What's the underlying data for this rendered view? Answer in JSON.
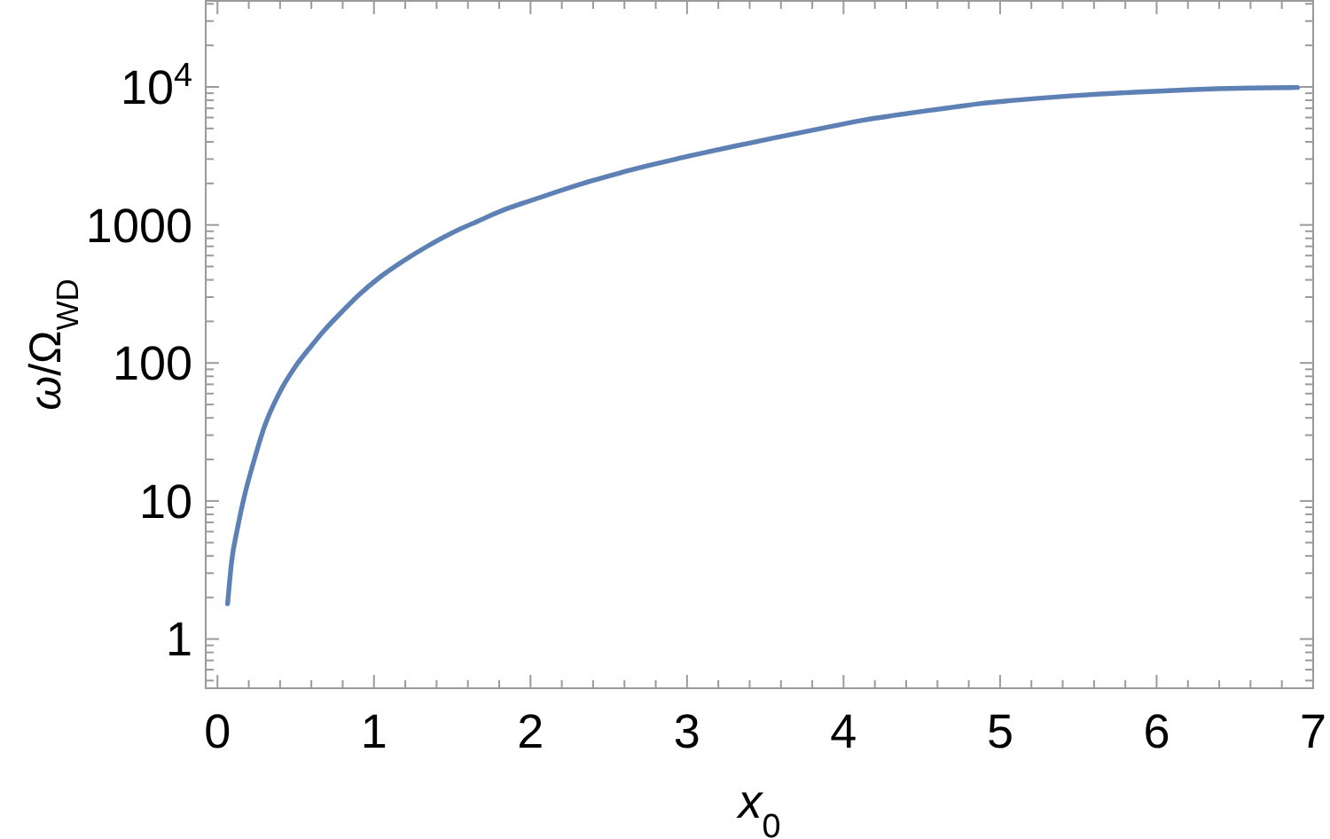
{
  "chart_data": {
    "type": "line",
    "xlabel": "x$_{0}$",
    "ylabel": "ω/Ω$_{WD}$",
    "log": "y",
    "x": [
      0.065,
      0.09,
      0.13,
      0.17,
      0.23,
      0.3,
      0.4,
      0.5,
      0.6,
      0.68,
      0.8,
      0.91,
      1.04,
      1.17,
      1.34,
      1.51,
      1.66,
      1.81,
      2.0,
      2.19,
      2.38,
      2.57,
      2.76,
      2.95,
      3.15,
      3.37,
      3.56,
      3.75,
      3.94,
      4.13,
      4.32,
      4.51,
      4.7,
      4.88,
      5.07,
      5.26,
      5.45,
      5.64,
      5.83,
      6.02,
      6.2,
      6.39,
      6.6,
      6.9
    ],
    "series": [
      {
        "color": "#5e81b5",
        "values": [
          1.8,
          3.6,
          6.5,
          10.6,
          19,
          34.5,
          62,
          95,
          133,
          171,
          238,
          316,
          420,
          532,
          700,
          889,
          1060,
          1260,
          1500,
          1770,
          2070,
          2380,
          2700,
          3040,
          3420,
          3860,
          4280,
          4730,
          5220,
          5750,
          6210,
          6670,
          7130,
          7590,
          7960,
          8300,
          8610,
          8890,
          9120,
          9330,
          9530,
          9700,
          9820,
          9900
        ]
      }
    ],
    "xlim": [
      -0.075,
      7.0
    ],
    "ylim": [
      0.44,
      42000
    ],
    "xticks": [
      0,
      {
        "value": 0.2,
        "label": null
      },
      {
        "value": 0.4,
        "label": null
      },
      {
        "value": 0.6,
        "label": null
      },
      {
        "value": 0.8,
        "label": null
      },
      1,
      {
        "value": 1.2,
        "label": null
      },
      {
        "value": 1.4,
        "label": null
      },
      {
        "value": 1.6,
        "label": null
      },
      {
        "value": 1.8,
        "label": null
      },
      2,
      {
        "value": 2.2,
        "label": null
      },
      {
        "value": 2.4,
        "label": null
      },
      {
        "value": 2.6,
        "label": null
      },
      {
        "value": 2.8,
        "label": null
      },
      3,
      {
        "value": 3.2,
        "label": null
      },
      {
        "value": 3.4,
        "label": null
      },
      {
        "value": 3.6,
        "label": null
      },
      {
        "value": 3.8,
        "label": null
      },
      4,
      {
        "value": 4.2,
        "label": null
      },
      {
        "value": 4.4,
        "label": null
      },
      {
        "value": 4.6,
        "label": null
      },
      {
        "value": 4.8,
        "label": null
      },
      5,
      {
        "value": 5.2,
        "label": null
      },
      {
        "value": 5.4,
        "label": null
      },
      {
        "value": 5.6,
        "label": null
      },
      {
        "value": 5.8,
        "label": null
      },
      6,
      {
        "value": 6.2,
        "label": null
      },
      {
        "value": 6.4,
        "label": null
      },
      {
        "value": 6.6,
        "label": null
      },
      {
        "value": 6.8,
        "label": null
      },
      7
    ],
    "yticks": [
      {
        "value": 0.5,
        "label": null
      },
      {
        "value": 0.6,
        "label": null
      },
      {
        "value": 0.7,
        "label": null
      },
      {
        "value": 0.8,
        "label": null
      },
      {
        "value": 0.9,
        "label": null
      },
      1,
      {
        "value": 2,
        "label": null
      },
      {
        "value": 3,
        "label": null
      },
      {
        "value": 4,
        "label": null
      },
      {
        "value": 5,
        "label": null
      },
      {
        "value": 6,
        "label": null
      },
      {
        "value": 7,
        "label": null
      },
      {
        "value": 8,
        "label": null
      },
      {
        "value": 9,
        "label": null
      },
      10,
      {
        "value": 20,
        "label": null
      },
      {
        "value": 30,
        "label": null
      },
      {
        "value": 40,
        "label": null
      },
      {
        "value": 50,
        "label": null
      },
      {
        "value": 60,
        "label": null
      },
      {
        "value": 70,
        "label": null
      },
      {
        "value": 80,
        "label": null
      },
      {
        "value": 90,
        "label": null
      },
      100,
      {
        "value": 200,
        "label": null
      },
      {
        "value": 300,
        "label": null
      },
      {
        "value": 400,
        "label": null
      },
      {
        "value": 500,
        "label": null
      },
      {
        "value": 600,
        "label": null
      },
      {
        "value": 700,
        "label": null
      },
      {
        "value": 800,
        "label": null
      },
      {
        "value": 900,
        "label": null
      },
      1000,
      {
        "value": 2000,
        "label": null
      },
      {
        "value": 3000,
        "label": null
      },
      {
        "value": 4000,
        "label": null
      },
      {
        "value": 5000,
        "label": null
      },
      {
        "value": 6000,
        "label": null
      },
      {
        "value": 7000,
        "label": null
      },
      {
        "value": 8000,
        "label": null
      },
      {
        "value": 9000,
        "label": null
      },
      {
        "value": 10000,
        "label": "10$^{4}$"
      },
      {
        "value": 20000,
        "label": null
      },
      {
        "value": 30000,
        "label": null
      },
      {
        "value": 40000,
        "label": null
      }
    ]
  }
}
